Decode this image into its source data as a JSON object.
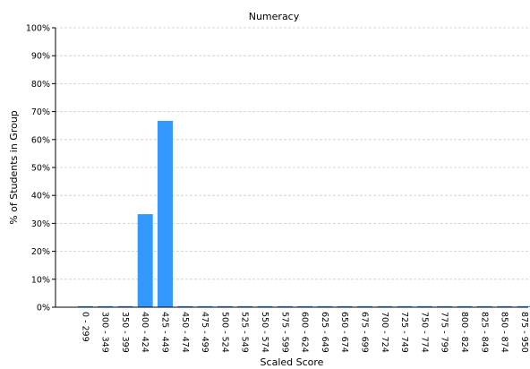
{
  "chart_data": {
    "type": "bar",
    "title": "Numeracy",
    "xlabel": "Scaled Score",
    "ylabel": "% of Students in Group",
    "ylim": [
      0,
      100
    ],
    "ytick_values": [
      0,
      10,
      20,
      30,
      40,
      50,
      60,
      70,
      80,
      90,
      100
    ],
    "ytick_labels": [
      "0%",
      "10%",
      "20%",
      "30%",
      "40%",
      "50%",
      "60%",
      "70%",
      "80%",
      "90%",
      "100%"
    ],
    "grid": true,
    "bar_color": "#3399ff",
    "categories": [
      "0 - 299",
      "300 - 349",
      "350 - 399",
      "400 - 424",
      "425 - 449",
      "450 - 474",
      "475 - 499",
      "500 - 524",
      "525 - 549",
      "550 - 574",
      "575 - 599",
      "600 - 624",
      "625 - 649",
      "650 - 674",
      "675 - 699",
      "700 - 724",
      "725 - 749",
      "750 - 774",
      "775 - 799",
      "800 - 824",
      "825 - 849",
      "850 - 874",
      "875 - 950"
    ],
    "values": [
      0,
      0,
      0,
      33.3,
      66.7,
      0,
      0,
      0,
      0,
      0,
      0,
      0,
      0,
      0,
      0,
      0,
      0,
      0,
      0,
      0,
      0,
      0,
      0
    ]
  }
}
